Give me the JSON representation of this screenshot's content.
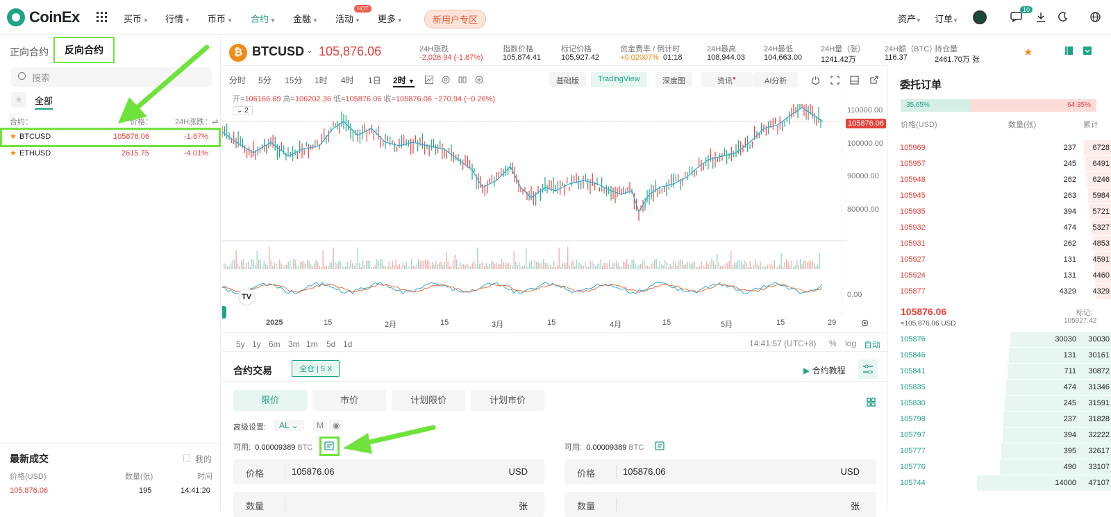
{
  "header": {
    "logo": "CoinEx",
    "nav": [
      "买币",
      "行情",
      "币币",
      "合约",
      "金融",
      "活动",
      "更多"
    ],
    "hot_badge": "HOT",
    "new_user": "新用户专区",
    "assets": "资产",
    "orders": "订单",
    "notification_count": "10"
  },
  "left": {
    "tab_forward": "正向合约",
    "tab_inverse": "反向合约",
    "search_placeholder": "搜索",
    "filter_all": "全部",
    "col_contract": "合约",
    "col_price": "价格",
    "col_change": "24H涨跌",
    "markets": [
      {
        "symbol": "BTCUSD",
        "price": "105876.06",
        "change": "-1.87%"
      },
      {
        "symbol": "ETHUSD",
        "price": "2615.75",
        "change": "-4.01%"
      }
    ],
    "recent_title": "最新成交",
    "recent_mine": "我的",
    "recent_cols": [
      "价格(USD)",
      "数量(张)",
      "时间"
    ],
    "recent_trade": {
      "price": "105,876.06",
      "qty": "195",
      "time": "14:41:20"
    }
  },
  "ticker": {
    "symbol": "BTCUSD",
    "price": "105,876.06",
    "stats": [
      {
        "label": "24H涨跌",
        "value": "-2,026.94 (-1.87%)"
      },
      {
        "label": "指数价格",
        "value": "105,874.41"
      },
      {
        "label": "标记价格",
        "value": "105,927.42"
      },
      {
        "label": "资金费率 / 倒计时",
        "value": "+0.02007%",
        "extra": "01:18"
      },
      {
        "label": "24H最高",
        "value": "108,944.03"
      },
      {
        "label": "24H最低",
        "value": "104,663.00"
      },
      {
        "label": "24H量（张）",
        "value": "1241.42万"
      },
      {
        "label": "24H额（BTC）",
        "value": "116.37"
      },
      {
        "label": "持仓量",
        "value": "2461.70万 张"
      }
    ]
  },
  "chart_toolbar": {
    "intervals": [
      "分时",
      "5分",
      "15分",
      "1时",
      "4时",
      "1日",
      "2时"
    ],
    "views": [
      "基础版",
      "TradingView",
      "深度图",
      "资讯",
      "AI分析"
    ]
  },
  "chart": {
    "ohlc": {
      "o_label": "开=",
      "o": "106166.69",
      "h_label": "高=",
      "h": "106202.36",
      "l_label": "低=",
      "l": "105876.06",
      "c_label": "收=",
      "c": "105876.06",
      "chg": "−270.94 (−0.26%)"
    },
    "indicator_count": "2",
    "last_price_label": "105876.06",
    "y_ticks": [
      "110000.00",
      "100000.00",
      "90000.00",
      "80000.00"
    ],
    "osc_tick": "0.00",
    "x_ticks": [
      "2025",
      "15",
      "2月",
      "15",
      "3月",
      "15",
      "4月",
      "15",
      "5月",
      "15",
      "29"
    ],
    "ranges": [
      "5y",
      "1y",
      "6m",
      "3m",
      "1m",
      "5d",
      "1d"
    ],
    "clock": "14:41:57 (UTC+8)",
    "opts": [
      "%",
      "log",
      "自动"
    ],
    "tv_logo": "TV"
  },
  "trade": {
    "title": "合约交易",
    "position_mode": "全仓 | 5 X",
    "tutorial": "合约教程",
    "order_tabs": [
      "限价",
      "市价",
      "计划限价",
      "计划市价"
    ],
    "advanced_label": "高级设置:",
    "advanced_value": "AL",
    "advanced_m": "M",
    "available_label": "可用:",
    "available_value": "0.00009389",
    "available_unit": "BTC",
    "price_label": "价格",
    "price_value": "105876.06",
    "price_unit": "USD",
    "qty_label": "数量",
    "qty_unit": "张"
  },
  "orderbook": {
    "title": "委托订单",
    "buy_ratio": "35.65%",
    "sell_ratio": "64.35%",
    "cols": [
      "价格(USD)",
      "数量(张)",
      "累计"
    ],
    "asks": [
      {
        "p": "105969",
        "q": "237",
        "t": "6728",
        "d": 0.2
      },
      {
        "p": "105957",
        "q": "245",
        "t": "6491",
        "d": 0.19
      },
      {
        "p": "105948",
        "q": "262",
        "t": "6246",
        "d": 0.18
      },
      {
        "p": "105945",
        "q": "263",
        "t": "5984",
        "d": 0.17
      },
      {
        "p": "105935",
        "q": "394",
        "t": "5721",
        "d": 0.16
      },
      {
        "p": "105932",
        "q": "474",
        "t": "5327",
        "d": 0.15
      },
      {
        "p": "105931",
        "q": "262",
        "t": "4853",
        "d": 0.14
      },
      {
        "p": "105927",
        "q": "131",
        "t": "4591",
        "d": 0.13
      },
      {
        "p": "105924",
        "q": "131",
        "t": "4460",
        "d": 0.12
      },
      {
        "p": "105877",
        "q": "4329",
        "t": "4329",
        "d": 0.11
      }
    ],
    "last_price": "105876.06",
    "last_usd": "≈105,876.06  USD",
    "mark_label": "标记:",
    "mark_value": "105927.42",
    "bids": [
      {
        "p": "105876",
        "q": "30030",
        "t": "30030",
        "d": 0.75
      },
      {
        "p": "105846",
        "q": "131",
        "t": "30161",
        "d": 0.76
      },
      {
        "p": "105841",
        "q": "711",
        "t": "30872",
        "d": 0.77
      },
      {
        "p": "105835",
        "q": "474",
        "t": "31346",
        "d": 0.78
      },
      {
        "p": "105830",
        "q": "245",
        "t": "31591",
        "d": 0.79
      },
      {
        "p": "105798",
        "q": "237",
        "t": "31828",
        "d": 0.8
      },
      {
        "p": "105797",
        "q": "394",
        "t": "32222",
        "d": 0.81
      },
      {
        "p": "105777",
        "q": "395",
        "t": "32617",
        "d": 0.82
      },
      {
        "p": "105776",
        "q": "490",
        "t": "33107",
        "d": 0.83
      },
      {
        "p": "105744",
        "q": "14000",
        "t": "47107",
        "d": 1.0
      }
    ]
  },
  "colors": {
    "accent": "#1fa386",
    "down": "#e5403b",
    "highlight": "#6fe33b",
    "coin": "#f08c1a"
  }
}
